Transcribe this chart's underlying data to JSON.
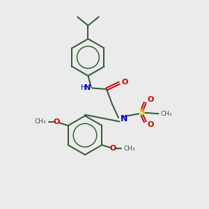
{
  "bg_color": "#ebebeb",
  "bond_color": "#2d5a2d",
  "N_color": "#0000cc",
  "O_color": "#cc0000",
  "S_color": "#cccc00",
  "C_color": "#2d5a2d",
  "bond_width": 1.4,
  "figsize": [
    3.0,
    3.0
  ],
  "dpi": 100,
  "xlim": [
    0,
    10
  ],
  "ylim": [
    0,
    10
  ]
}
